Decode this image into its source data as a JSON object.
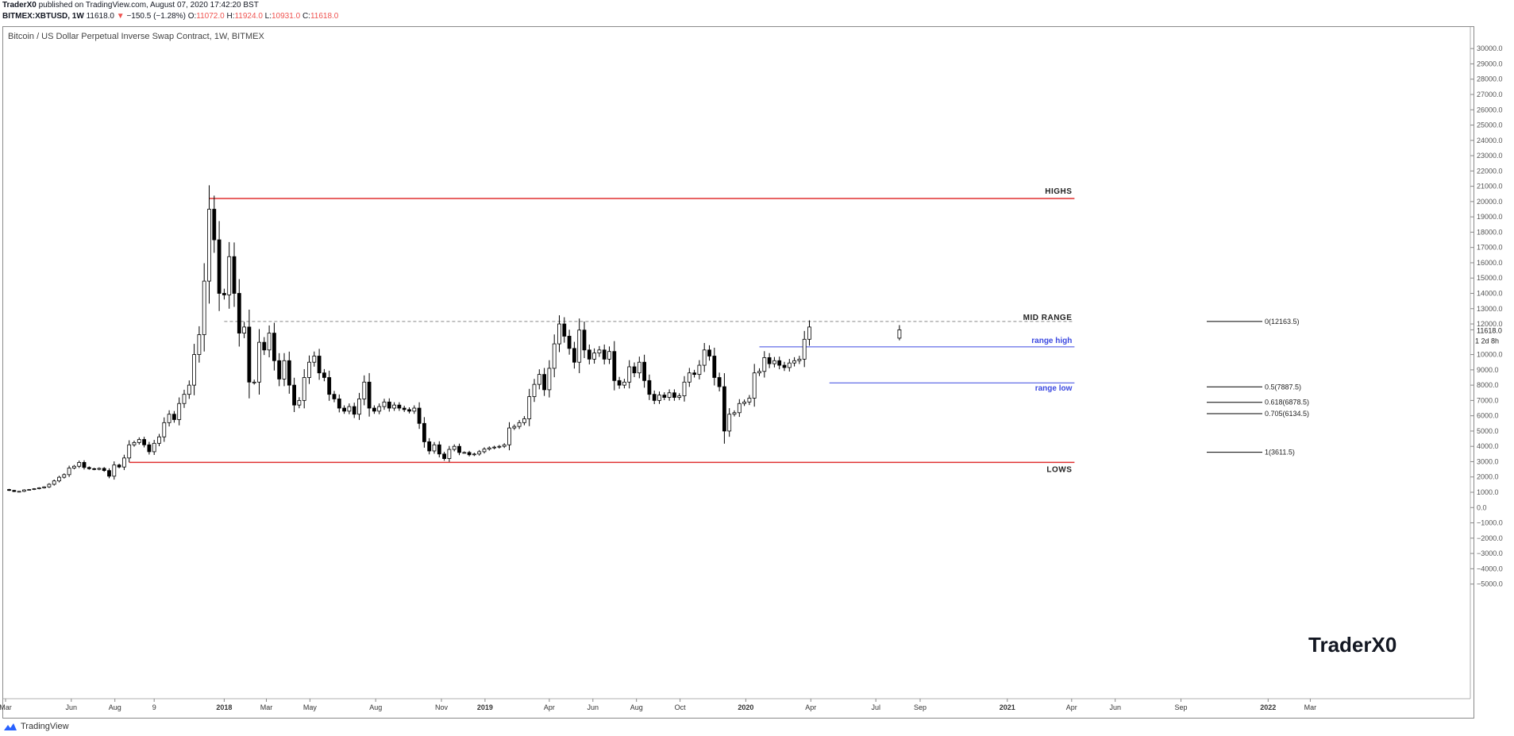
{
  "header": {
    "publisher_line_author": "TraderX0",
    "publisher_line_rest": " published on TradingView.com, August 07, 2020 17:42:20 BST",
    "symbol": "BITMEX:XBTUSD, 1W",
    "price": "11618.0",
    "change": "−150.5 (−1.28%)",
    "o_label": "O:",
    "o_value": "11072.0",
    "h_label": "H:",
    "h_value": "11924.0",
    "l_label": "L:",
    "l_value": "10931.0",
    "c_label": "C:",
    "c_value": "11618.0"
  },
  "chart_title": "Bitcoin / US Dollar Perpetual Inverse Swap Contract, 1W, BITMEX",
  "watermark": "TraderX0",
  "footer": {
    "brand": "TradingView"
  },
  "colors": {
    "resistance_lines": "#e03030",
    "range_lines": "#3b48e0",
    "candle_up_fill": "#ffffff",
    "candle_down_fill": "#000000",
    "candle_border": "#000000",
    "dashed_line": "#888888",
    "current_price_marker": "#8a8a8a"
  },
  "chart_data": {
    "type": "candlestick",
    "timeframe": "1W",
    "ylim": [
      -5500,
      30600
    ],
    "y_axis_ticks": [
      "30000.0",
      "29000.0",
      "28000.0",
      "27000.0",
      "26000.0",
      "25000.0",
      "24000.0",
      "23000.0",
      "22000.0",
      "21000.0",
      "20000.0",
      "19000.0",
      "18000.0",
      "17000.0",
      "16000.0",
      "15000.0",
      "14000.0",
      "13000.0",
      "12000.0",
      "10000.0",
      "9000.0",
      "8000.0",
      "7000.0",
      "6000.0",
      "5000.0",
      "4000.0",
      "3000.0",
      "2000.0",
      "1000.0",
      "0.0",
      "−1000.0",
      "−2000.0",
      "−3000.0",
      "−4000.0",
      "−5000.0"
    ],
    "y_axis_tick_values": [
      30000,
      29000,
      28000,
      27000,
      26000,
      25000,
      24000,
      23000,
      22000,
      21000,
      20000,
      19000,
      18000,
      17000,
      16000,
      15000,
      14000,
      13000,
      12000,
      10000,
      9000,
      8000,
      7000,
      6000,
      5000,
      4000,
      3000,
      2000,
      1000,
      0,
      -1000,
      -2000,
      -3000,
      -4000,
      -5000
    ],
    "current_price_label": "11618.0",
    "countdown_label": "1 2d 8h",
    "x_axis_ticks": [
      {
        "label": "Mar",
        "date": "2017-03-01"
      },
      {
        "label": "Jun",
        "date": "2017-06-01"
      },
      {
        "label": "Aug",
        "date": "2017-08-01"
      },
      {
        "label": "9",
        "date": "2017-09-25"
      },
      {
        "label": "2018",
        "date": "2018-01-01",
        "bold": true
      },
      {
        "label": "Mar",
        "date": "2018-03-01"
      },
      {
        "label": "May",
        "date": "2018-05-01"
      },
      {
        "label": "Aug",
        "date": "2018-08-01"
      },
      {
        "label": "Nov",
        "date": "2018-11-01"
      },
      {
        "label": "2019",
        "date": "2019-01-01",
        "bold": true
      },
      {
        "label": "Apr",
        "date": "2019-04-01"
      },
      {
        "label": "Jun",
        "date": "2019-06-01"
      },
      {
        "label": "Aug",
        "date": "2019-08-01"
      },
      {
        "label": "Oct",
        "date": "2019-10-01"
      },
      {
        "label": "2020",
        "date": "2020-01-01",
        "bold": true
      },
      {
        "label": "Apr",
        "date": "2020-04-01"
      },
      {
        "label": "Jul",
        "date": "2020-07-01"
      },
      {
        "label": "Sep",
        "date": "2020-09-01"
      },
      {
        "label": "2021",
        "date": "2021-01-01",
        "bold": true
      },
      {
        "label": "Apr",
        "date": "2021-04-01"
      },
      {
        "label": "Jun",
        "date": "2021-06-01"
      },
      {
        "label": "Sep",
        "date": "2021-09-01"
      },
      {
        "label": "2022",
        "date": "2022-01-01",
        "bold": true
      },
      {
        "label": "Mar",
        "date": "2022-03-01"
      }
    ],
    "closes_anchor_date": "2017-02-27",
    "weekly_closes": [
      1180,
      1120,
      1050,
      1060,
      1150,
      1180,
      1230,
      1290,
      1350,
      1520,
      1740,
      1980,
      2150,
      2580,
      2700,
      2950,
      2620,
      2540,
      2500,
      2560,
      2420,
      2050,
      2780,
      2650,
      3240,
      4100,
      4250,
      4450,
      4100,
      3650,
      4200,
      4620,
      5550,
      6100,
      5750,
      6800,
      7400,
      8000,
      10000,
      11300,
      14800,
      19500,
      17500,
      14000,
      13900,
      16400,
      14000,
      11400,
      11800,
      8200,
      8200,
      10800,
      10300,
      11400,
      9600,
      8400,
      9600,
      8000,
      6700,
      7000,
      8500,
      9500,
      9900,
      8800,
      8500,
      7400,
      7100,
      6500,
      6300,
      6600,
      6100,
      7100,
      8200,
      6500,
      6300,
      6600,
      6900,
      6500,
      6700,
      6500,
      6400,
      6300,
      6500,
      5500,
      4300,
      3700,
      4100,
      3500,
      3200,
      3800,
      4000,
      3600,
      3600,
      3450,
      3500,
      3650,
      3820,
      3900,
      3950,
      4000,
      4100,
      5200,
      5300,
      5550,
      5800,
      7250,
      8050,
      8700,
      7700,
      9100,
      10700,
      12000,
      11200,
      10400,
      9500,
      11600,
      10300,
      9700,
      10100,
      10300,
      9700,
      10200,
      8300,
      8000,
      8200,
      9200,
      8800,
      9500,
      8300,
      7400,
      7000,
      7350,
      7200,
      7500,
      7200,
      7300,
      8200,
      8800,
      8700,
      9300,
      10300,
      9900,
      8500,
      7900,
      5000,
      6100,
      6200,
      6800,
      6900,
      7150,
      8800,
      8900,
      9800,
      9400,
      9600,
      9300,
      9150,
      9450,
      9600,
      9700,
      11000,
      11800
    ],
    "last_candle": {
      "date": "2020-08-03",
      "open": 11072,
      "high": 11924,
      "low": 10931,
      "close": 11618
    },
    "annotations": {
      "highs": {
        "label": "HIGHS",
        "value": 20200,
        "start_date": "2017-12-11",
        "end_date": "2021-04-05"
      },
      "lows": {
        "label": "LOWS",
        "value": 2950,
        "start_date": "2017-08-21",
        "end_date": "2021-04-05"
      },
      "mid_range": {
        "label": "MID RANGE",
        "value": 12163.5,
        "start_date": "2018-01-01",
        "end_date": "2021-04-05",
        "style": "dashed"
      },
      "range_high": {
        "label": "range high",
        "value": 10500,
        "start_date": "2020-01-20",
        "end_date": "2021-04-05"
      },
      "range_low": {
        "label": "range low",
        "value": 8150,
        "start_date": "2020-04-27",
        "end_date": "2021-04-05"
      }
    },
    "fib_levels": [
      {
        "label": "0(12163.5)",
        "value": 12163.5
      },
      {
        "label": "0.5(7887.5)",
        "value": 7887.5
      },
      {
        "label": "0.618(6878.5)",
        "value": 6878.5
      },
      {
        "label": "0.705(6134.5)",
        "value": 6134.5
      },
      {
        "label": "1(3611.5)",
        "value": 3611.5
      }
    ]
  }
}
